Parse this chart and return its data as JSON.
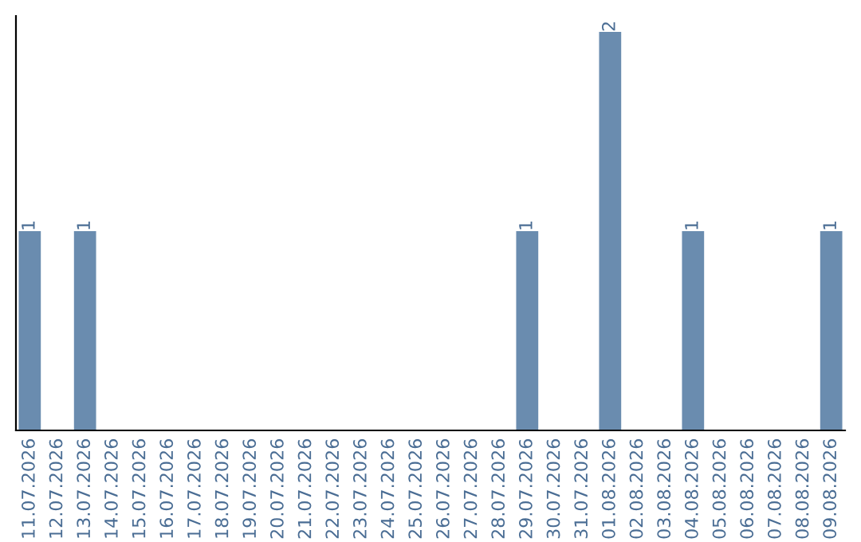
{
  "chart_data": {
    "type": "bar",
    "categories": [
      "11.07.2026",
      "12.07.2026",
      "13.07.2026",
      "14.07.2026",
      "15.07.2026",
      "16.07.2026",
      "17.07.2026",
      "18.07.2026",
      "19.07.2026",
      "20.07.2026",
      "21.07.2026",
      "22.07.2026",
      "23.07.2026",
      "24.07.2026",
      "25.07.2026",
      "26.07.2026",
      "27.07.2026",
      "28.07.2026",
      "29.07.2026",
      "30.07.2026",
      "31.07.2026",
      "01.08.2026",
      "02.08.2026",
      "03.08.2026",
      "04.08.2026",
      "05.08.2026",
      "06.08.2026",
      "07.08.2026",
      "08.08.2026",
      "09.08.2026"
    ],
    "values": [
      1,
      0,
      1,
      0,
      0,
      0,
      0,
      0,
      0,
      0,
      0,
      0,
      0,
      0,
      0,
      0,
      0,
      0,
      1,
      0,
      0,
      2,
      0,
      0,
      1,
      0,
      0,
      0,
      0,
      1
    ],
    "value_labels": [
      "1",
      null,
      "1",
      null,
      null,
      null,
      null,
      null,
      null,
      null,
      null,
      null,
      null,
      null,
      null,
      null,
      null,
      null,
      "1",
      null,
      null,
      "2",
      null,
      null,
      "1",
      null,
      null,
      null,
      null,
      "1"
    ],
    "color": "#6a8caf",
    "tick_labels": "x",
    "grid": false
  }
}
